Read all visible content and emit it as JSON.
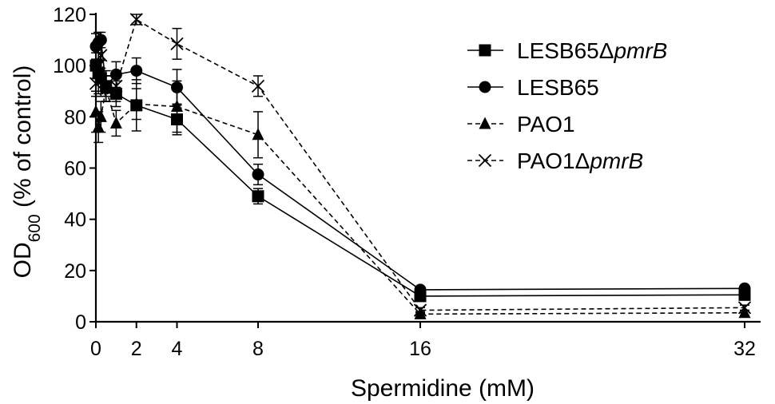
{
  "chart_data": {
    "type": "line",
    "xlabel": "Spermidine (mM)",
    "ylabel": {
      "main": "OD",
      "sub": "600",
      "rest": " (% of control)"
    },
    "xlim": [
      0,
      32
    ],
    "ylim": [
      0,
      120
    ],
    "xticks": [
      0,
      2,
      4,
      8,
      16,
      32
    ],
    "yticks": [
      0,
      20,
      40,
      60,
      80,
      100,
      120
    ],
    "grid": false,
    "legend_position": "top-right",
    "series": [
      {
        "name": "LESB65Δpmr",
        "name_italic_part": "B",
        "name_prefix": "LESB65Δ",
        "name_italic": "pmrB",
        "marker": "square",
        "dashed": false,
        "x": [
          0,
          0.125,
          0.25,
          0.5,
          1,
          2,
          4,
          8,
          16,
          32
        ],
        "y": [
          100,
          97,
          95,
          92,
          89,
          84.5,
          79,
          49,
          10,
          10.5
        ],
        "err": [
          5,
          8,
          7,
          6,
          5,
          10,
          6,
          3,
          1,
          1
        ]
      },
      {
        "name": "LESB65",
        "name_prefix": "LESB65",
        "name_italic": "",
        "marker": "circle",
        "dashed": false,
        "x": [
          0,
          0.125,
          0.25,
          0.5,
          1,
          2,
          4,
          8,
          16,
          32
        ],
        "y": [
          107.5,
          109,
          110,
          92,
          96.5,
          98,
          91.5,
          57.5,
          12.5,
          13
        ],
        "err": [
          5,
          4,
          3,
          4,
          5,
          5,
          7,
          4,
          1,
          1
        ]
      },
      {
        "name": "PAO1",
        "name_prefix": "PAO1",
        "name_italic": "",
        "marker": "triangle",
        "dashed": true,
        "x": [
          0,
          0.125,
          0.25,
          0.5,
          1,
          2,
          4,
          8,
          16,
          32
        ],
        "y": [
          82,
          76,
          80,
          91,
          77.5,
          85,
          84,
          73,
          3,
          3.5
        ],
        "err": [
          8,
          6,
          6,
          5,
          5,
          6,
          10,
          9,
          1,
          1
        ]
      },
      {
        "name": "PAO1Δpmr",
        "name_prefix": "PAO1Δ",
        "name_italic": "pmrB",
        "marker": "cross",
        "dashed": true,
        "x": [
          0,
          0.125,
          0.25,
          0.5,
          1,
          2,
          4,
          8,
          16,
          32
        ],
        "y": [
          93,
          100,
          104,
          91,
          92,
          118,
          108.5,
          92,
          4.5,
          5.5
        ],
        "err": [
          5,
          5,
          5,
          5,
          6,
          2,
          6,
          4,
          1,
          1
        ]
      }
    ]
  }
}
